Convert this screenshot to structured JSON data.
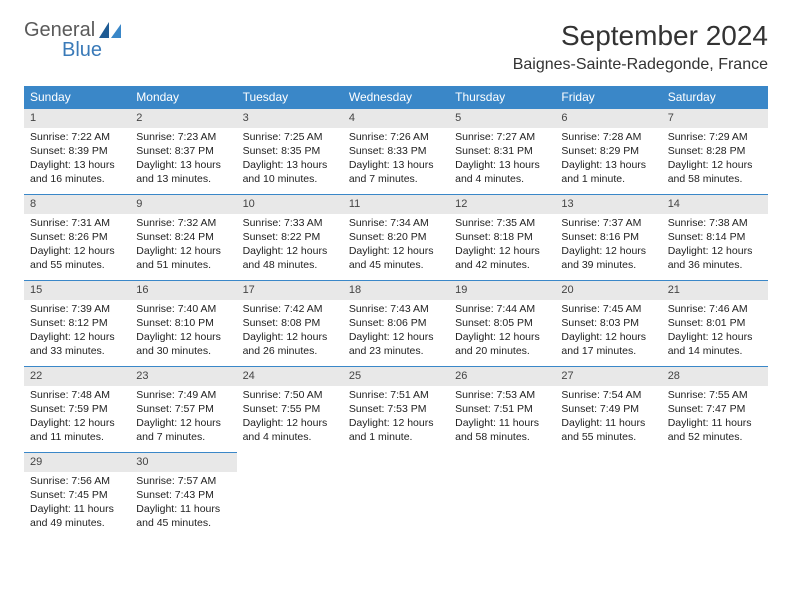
{
  "logo": {
    "word1": "General",
    "word2": "Blue"
  },
  "title": "September 2024",
  "location": "Baignes-Sainte-Radegonde, France",
  "colors": {
    "header_bg": "#3a87c8",
    "header_text": "#ffffff",
    "daynum_bg": "#e8e8e8",
    "row_divider": "#3a87c8",
    "logo_gray": "#5a5a5a",
    "logo_blue": "#3a7ab8",
    "body_text": "#222222",
    "background": "#ffffff"
  },
  "weekdays": [
    "Sunday",
    "Monday",
    "Tuesday",
    "Wednesday",
    "Thursday",
    "Friday",
    "Saturday"
  ],
  "days": [
    {
      "n": "1",
      "sunrise": "Sunrise: 7:22 AM",
      "sunset": "Sunset: 8:39 PM",
      "day1": "Daylight: 13 hours",
      "day2": "and 16 minutes."
    },
    {
      "n": "2",
      "sunrise": "Sunrise: 7:23 AM",
      "sunset": "Sunset: 8:37 PM",
      "day1": "Daylight: 13 hours",
      "day2": "and 13 minutes."
    },
    {
      "n": "3",
      "sunrise": "Sunrise: 7:25 AM",
      "sunset": "Sunset: 8:35 PM",
      "day1": "Daylight: 13 hours",
      "day2": "and 10 minutes."
    },
    {
      "n": "4",
      "sunrise": "Sunrise: 7:26 AM",
      "sunset": "Sunset: 8:33 PM",
      "day1": "Daylight: 13 hours",
      "day2": "and 7 minutes."
    },
    {
      "n": "5",
      "sunrise": "Sunrise: 7:27 AM",
      "sunset": "Sunset: 8:31 PM",
      "day1": "Daylight: 13 hours",
      "day2": "and 4 minutes."
    },
    {
      "n": "6",
      "sunrise": "Sunrise: 7:28 AM",
      "sunset": "Sunset: 8:29 PM",
      "day1": "Daylight: 13 hours",
      "day2": "and 1 minute."
    },
    {
      "n": "7",
      "sunrise": "Sunrise: 7:29 AM",
      "sunset": "Sunset: 8:28 PM",
      "day1": "Daylight: 12 hours",
      "day2": "and 58 minutes."
    },
    {
      "n": "8",
      "sunrise": "Sunrise: 7:31 AM",
      "sunset": "Sunset: 8:26 PM",
      "day1": "Daylight: 12 hours",
      "day2": "and 55 minutes."
    },
    {
      "n": "9",
      "sunrise": "Sunrise: 7:32 AM",
      "sunset": "Sunset: 8:24 PM",
      "day1": "Daylight: 12 hours",
      "day2": "and 51 minutes."
    },
    {
      "n": "10",
      "sunrise": "Sunrise: 7:33 AM",
      "sunset": "Sunset: 8:22 PM",
      "day1": "Daylight: 12 hours",
      "day2": "and 48 minutes."
    },
    {
      "n": "11",
      "sunrise": "Sunrise: 7:34 AM",
      "sunset": "Sunset: 8:20 PM",
      "day1": "Daylight: 12 hours",
      "day2": "and 45 minutes."
    },
    {
      "n": "12",
      "sunrise": "Sunrise: 7:35 AM",
      "sunset": "Sunset: 8:18 PM",
      "day1": "Daylight: 12 hours",
      "day2": "and 42 minutes."
    },
    {
      "n": "13",
      "sunrise": "Sunrise: 7:37 AM",
      "sunset": "Sunset: 8:16 PM",
      "day1": "Daylight: 12 hours",
      "day2": "and 39 minutes."
    },
    {
      "n": "14",
      "sunrise": "Sunrise: 7:38 AM",
      "sunset": "Sunset: 8:14 PM",
      "day1": "Daylight: 12 hours",
      "day2": "and 36 minutes."
    },
    {
      "n": "15",
      "sunrise": "Sunrise: 7:39 AM",
      "sunset": "Sunset: 8:12 PM",
      "day1": "Daylight: 12 hours",
      "day2": "and 33 minutes."
    },
    {
      "n": "16",
      "sunrise": "Sunrise: 7:40 AM",
      "sunset": "Sunset: 8:10 PM",
      "day1": "Daylight: 12 hours",
      "day2": "and 30 minutes."
    },
    {
      "n": "17",
      "sunrise": "Sunrise: 7:42 AM",
      "sunset": "Sunset: 8:08 PM",
      "day1": "Daylight: 12 hours",
      "day2": "and 26 minutes."
    },
    {
      "n": "18",
      "sunrise": "Sunrise: 7:43 AM",
      "sunset": "Sunset: 8:06 PM",
      "day1": "Daylight: 12 hours",
      "day2": "and 23 minutes."
    },
    {
      "n": "19",
      "sunrise": "Sunrise: 7:44 AM",
      "sunset": "Sunset: 8:05 PM",
      "day1": "Daylight: 12 hours",
      "day2": "and 20 minutes."
    },
    {
      "n": "20",
      "sunrise": "Sunrise: 7:45 AM",
      "sunset": "Sunset: 8:03 PM",
      "day1": "Daylight: 12 hours",
      "day2": "and 17 minutes."
    },
    {
      "n": "21",
      "sunrise": "Sunrise: 7:46 AM",
      "sunset": "Sunset: 8:01 PM",
      "day1": "Daylight: 12 hours",
      "day2": "and 14 minutes."
    },
    {
      "n": "22",
      "sunrise": "Sunrise: 7:48 AM",
      "sunset": "Sunset: 7:59 PM",
      "day1": "Daylight: 12 hours",
      "day2": "and 11 minutes."
    },
    {
      "n": "23",
      "sunrise": "Sunrise: 7:49 AM",
      "sunset": "Sunset: 7:57 PM",
      "day1": "Daylight: 12 hours",
      "day2": "and 7 minutes."
    },
    {
      "n": "24",
      "sunrise": "Sunrise: 7:50 AM",
      "sunset": "Sunset: 7:55 PM",
      "day1": "Daylight: 12 hours",
      "day2": "and 4 minutes."
    },
    {
      "n": "25",
      "sunrise": "Sunrise: 7:51 AM",
      "sunset": "Sunset: 7:53 PM",
      "day1": "Daylight: 12 hours",
      "day2": "and 1 minute."
    },
    {
      "n": "26",
      "sunrise": "Sunrise: 7:53 AM",
      "sunset": "Sunset: 7:51 PM",
      "day1": "Daylight: 11 hours",
      "day2": "and 58 minutes."
    },
    {
      "n": "27",
      "sunrise": "Sunrise: 7:54 AM",
      "sunset": "Sunset: 7:49 PM",
      "day1": "Daylight: 11 hours",
      "day2": "and 55 minutes."
    },
    {
      "n": "28",
      "sunrise": "Sunrise: 7:55 AM",
      "sunset": "Sunset: 7:47 PM",
      "day1": "Daylight: 11 hours",
      "day2": "and 52 minutes."
    },
    {
      "n": "29",
      "sunrise": "Sunrise: 7:56 AM",
      "sunset": "Sunset: 7:45 PM",
      "day1": "Daylight: 11 hours",
      "day2": "and 49 minutes."
    },
    {
      "n": "30",
      "sunrise": "Sunrise: 7:57 AM",
      "sunset": "Sunset: 7:43 PM",
      "day1": "Daylight: 11 hours",
      "day2": "and 45 minutes."
    }
  ]
}
